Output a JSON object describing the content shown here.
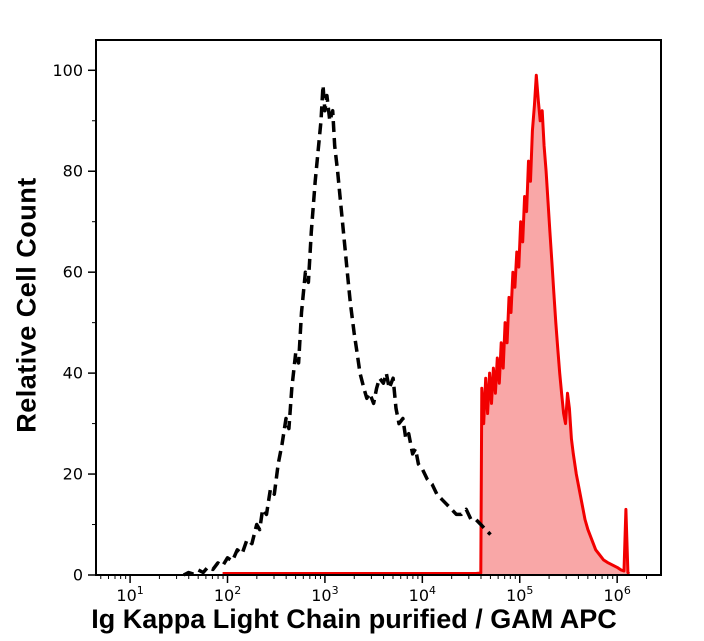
{
  "figure": {
    "background": "#ffffff",
    "axis_color": "#000000"
  },
  "chart_data": {
    "type": "area",
    "subtype": "flow-cytometry-histogram-overlay",
    "title": "",
    "xlabel": "Ig Kappa Light Chain purified / GAM APC",
    "ylabel": "Relative Cell Count",
    "x_scale": "log10",
    "x_range_log10": [
      0.65,
      6.45
    ],
    "ylim": [
      0,
      106
    ],
    "grid": false,
    "legend_position": "none",
    "y_ticks": [
      0,
      20,
      40,
      60,
      80,
      100
    ],
    "y_minor_step": 10,
    "x_major_ticks": [
      {
        "log10": 1,
        "base": "10",
        "exp": "1"
      },
      {
        "log10": 2,
        "base": "10",
        "exp": "2"
      },
      {
        "log10": 3,
        "base": "10",
        "exp": "3"
      },
      {
        "log10": 4,
        "base": "10",
        "exp": "4"
      },
      {
        "log10": 5,
        "base": "10",
        "exp": "5"
      },
      {
        "log10": 6,
        "base": "10",
        "exp": "6"
      }
    ],
    "series": [
      {
        "name": "stained-red-filled",
        "line_style": "solid",
        "color": "#f20000",
        "fill": "#f9a7a7",
        "stroke_width": 3,
        "points_log10x_y": [
          [
            1.95,
            0.3
          ],
          [
            3.0,
            0.3
          ],
          [
            4.0,
            0.3
          ],
          [
            4.55,
            0.3
          ],
          [
            4.6,
            0.4
          ],
          [
            4.61,
            37
          ],
          [
            4.63,
            30
          ],
          [
            4.65,
            39
          ],
          [
            4.67,
            32
          ],
          [
            4.69,
            40
          ],
          [
            4.71,
            34
          ],
          [
            4.73,
            41
          ],
          [
            4.75,
            36
          ],
          [
            4.77,
            43
          ],
          [
            4.79,
            38
          ],
          [
            4.81,
            46
          ],
          [
            4.83,
            41
          ],
          [
            4.85,
            50
          ],
          [
            4.87,
            46
          ],
          [
            4.89,
            55
          ],
          [
            4.91,
            52
          ],
          [
            4.93,
            60
          ],
          [
            4.95,
            57
          ],
          [
            4.97,
            64
          ],
          [
            4.99,
            61
          ],
          [
            5.01,
            70
          ],
          [
            5.03,
            66
          ],
          [
            5.05,
            75
          ],
          [
            5.07,
            72
          ],
          [
            5.09,
            82
          ],
          [
            5.11,
            78
          ],
          [
            5.13,
            88
          ],
          [
            5.15,
            93
          ],
          [
            5.17,
            99
          ],
          [
            5.19,
            94
          ],
          [
            5.21,
            90
          ],
          [
            5.23,
            92
          ],
          [
            5.25,
            85
          ],
          [
            5.27,
            80
          ],
          [
            5.29,
            74
          ],
          [
            5.31,
            68
          ],
          [
            5.33,
            62
          ],
          [
            5.35,
            56
          ],
          [
            5.37,
            50
          ],
          [
            5.39,
            45
          ],
          [
            5.41,
            40
          ],
          [
            5.43,
            36
          ],
          [
            5.45,
            32
          ],
          [
            5.47,
            30
          ],
          [
            5.49,
            36
          ],
          [
            5.51,
            33
          ],
          [
            5.53,
            27
          ],
          [
            5.55,
            24
          ],
          [
            5.58,
            20
          ],
          [
            5.61,
            17
          ],
          [
            5.64,
            14
          ],
          [
            5.67,
            11
          ],
          [
            5.7,
            9
          ],
          [
            5.74,
            7
          ],
          [
            5.78,
            5
          ],
          [
            5.82,
            4
          ],
          [
            5.86,
            3
          ],
          [
            5.9,
            2.5
          ],
          [
            5.95,
            2
          ],
          [
            6.0,
            1.5
          ],
          [
            6.04,
            1
          ],
          [
            6.07,
            0.8
          ],
          [
            6.09,
            13
          ],
          [
            6.11,
            0.5
          ],
          [
            6.12,
            0.2
          ]
        ]
      },
      {
        "name": "control-dashed-black",
        "line_style": "dashed",
        "color": "#000000",
        "fill": null,
        "stroke_width": 3.5,
        "points_log10x_y": [
          [
            1.55,
            0
          ],
          [
            1.6,
            0.5
          ],
          [
            1.65,
            0.2
          ],
          [
            1.7,
            1
          ],
          [
            1.75,
            0.5
          ],
          [
            1.8,
            1.6
          ],
          [
            1.85,
            1.1
          ],
          [
            1.9,
            2.4
          ],
          [
            1.95,
            1.8
          ],
          [
            2.0,
            3.4
          ],
          [
            2.05,
            2.8
          ],
          [
            2.1,
            5
          ],
          [
            2.15,
            4.2
          ],
          [
            2.2,
            7
          ],
          [
            2.25,
            6.2
          ],
          [
            2.3,
            10
          ],
          [
            2.33,
            9
          ],
          [
            2.36,
            13
          ],
          [
            2.4,
            12
          ],
          [
            2.44,
            17
          ],
          [
            2.48,
            16
          ],
          [
            2.52,
            22
          ],
          [
            2.56,
            26
          ],
          [
            2.6,
            31
          ],
          [
            2.63,
            29
          ],
          [
            2.66,
            37
          ],
          [
            2.7,
            44
          ],
          [
            2.73,
            42
          ],
          [
            2.76,
            52
          ],
          [
            2.8,
            60
          ],
          [
            2.83,
            58
          ],
          [
            2.86,
            68
          ],
          [
            2.9,
            78
          ],
          [
            2.93,
            84
          ],
          [
            2.96,
            90
          ],
          [
            2.98,
            97
          ],
          [
            3.0,
            92
          ],
          [
            3.02,
            95
          ],
          [
            3.05,
            90
          ],
          [
            3.08,
            92
          ],
          [
            3.1,
            85
          ],
          [
            3.13,
            80
          ],
          [
            3.16,
            74
          ],
          [
            3.2,
            66
          ],
          [
            3.23,
            60
          ],
          [
            3.26,
            54
          ],
          [
            3.3,
            48
          ],
          [
            3.33,
            44
          ],
          [
            3.36,
            40
          ],
          [
            3.4,
            37
          ],
          [
            3.43,
            35
          ],
          [
            3.46,
            36
          ],
          [
            3.5,
            34
          ],
          [
            3.53,
            37
          ],
          [
            3.56,
            39
          ],
          [
            3.6,
            38
          ],
          [
            3.63,
            40
          ],
          [
            3.66,
            37
          ],
          [
            3.7,
            39
          ],
          [
            3.73,
            33
          ],
          [
            3.76,
            30
          ],
          [
            3.8,
            31
          ],
          [
            3.83,
            27
          ],
          [
            3.86,
            28
          ],
          [
            3.9,
            24
          ],
          [
            3.93,
            25
          ],
          [
            3.96,
            22
          ],
          [
            4.0,
            21
          ],
          [
            4.05,
            19
          ],
          [
            4.1,
            18
          ],
          [
            4.15,
            16
          ],
          [
            4.2,
            15
          ],
          [
            4.25,
            14
          ],
          [
            4.3,
            13
          ],
          [
            4.35,
            12
          ],
          [
            4.4,
            12
          ],
          [
            4.45,
            13
          ],
          [
            4.5,
            11
          ],
          [
            4.55,
            11
          ],
          [
            4.6,
            10
          ],
          [
            4.65,
            9
          ],
          [
            4.7,
            8
          ]
        ]
      }
    ]
  }
}
